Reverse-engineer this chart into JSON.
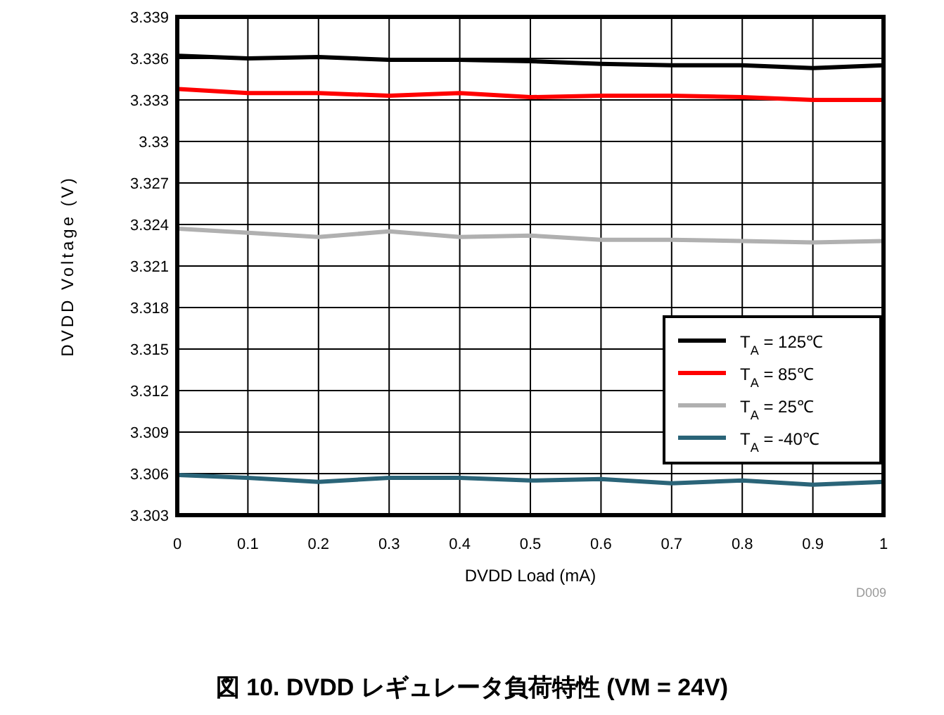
{
  "chart_data": {
    "type": "line",
    "title": "図 10. DVDD レギュレータ負荷特性 (VM = 24V)",
    "xlabel": "DVDD Load (mA)",
    "ylabel": "DVDD Voltage (V)",
    "annotations": [
      "D009"
    ],
    "x": [
      0,
      0.1,
      0.2,
      0.3,
      0.4,
      0.5,
      0.6,
      0.7,
      0.8,
      0.9,
      1
    ],
    "series": [
      {
        "name": "T$_{A}$ = 125℃",
        "color": "#000000",
        "values": [
          3.3362,
          3.336,
          3.3361,
          3.3359,
          3.3359,
          3.3358,
          3.3356,
          3.3355,
          3.3355,
          3.3353,
          3.3355
        ]
      },
      {
        "name": "T$_{A}$ = 85℃",
        "color": "#ff0000",
        "values": [
          3.3338,
          3.3335,
          3.3335,
          3.3333,
          3.3335,
          3.3332,
          3.3333,
          3.3333,
          3.3332,
          3.333,
          3.333
        ]
      },
      {
        "name": "T$_{A}$ = 25℃",
        "color": "#b0b0b0",
        "values": [
          3.3237,
          3.3234,
          3.3231,
          3.3235,
          3.3231,
          3.3232,
          3.3229,
          3.3229,
          3.3228,
          3.3227,
          3.3228
        ]
      },
      {
        "name": "T$_{A}$ = -40℃",
        "color": "#2a6478",
        "values": [
          3.3059,
          3.3057,
          3.3054,
          3.3057,
          3.3057,
          3.3055,
          3.3056,
          3.3053,
          3.3055,
          3.3052,
          3.3054
        ]
      }
    ],
    "xlim": [
      0,
      1
    ],
    "xticks": [
      0,
      0.1,
      0.2,
      0.3,
      0.4,
      0.5,
      0.6,
      0.7,
      0.8,
      0.9,
      1
    ],
    "ylim": [
      3.303,
      3.339
    ],
    "yticks": [
      3.303,
      3.306,
      3.309,
      3.312,
      3.315,
      3.318,
      3.321,
      3.324,
      3.327,
      3.33,
      3.333,
      3.336,
      3.339
    ],
    "grid": true,
    "legend": "bottom right",
    "marker": "none",
    "line_style": "solid"
  }
}
